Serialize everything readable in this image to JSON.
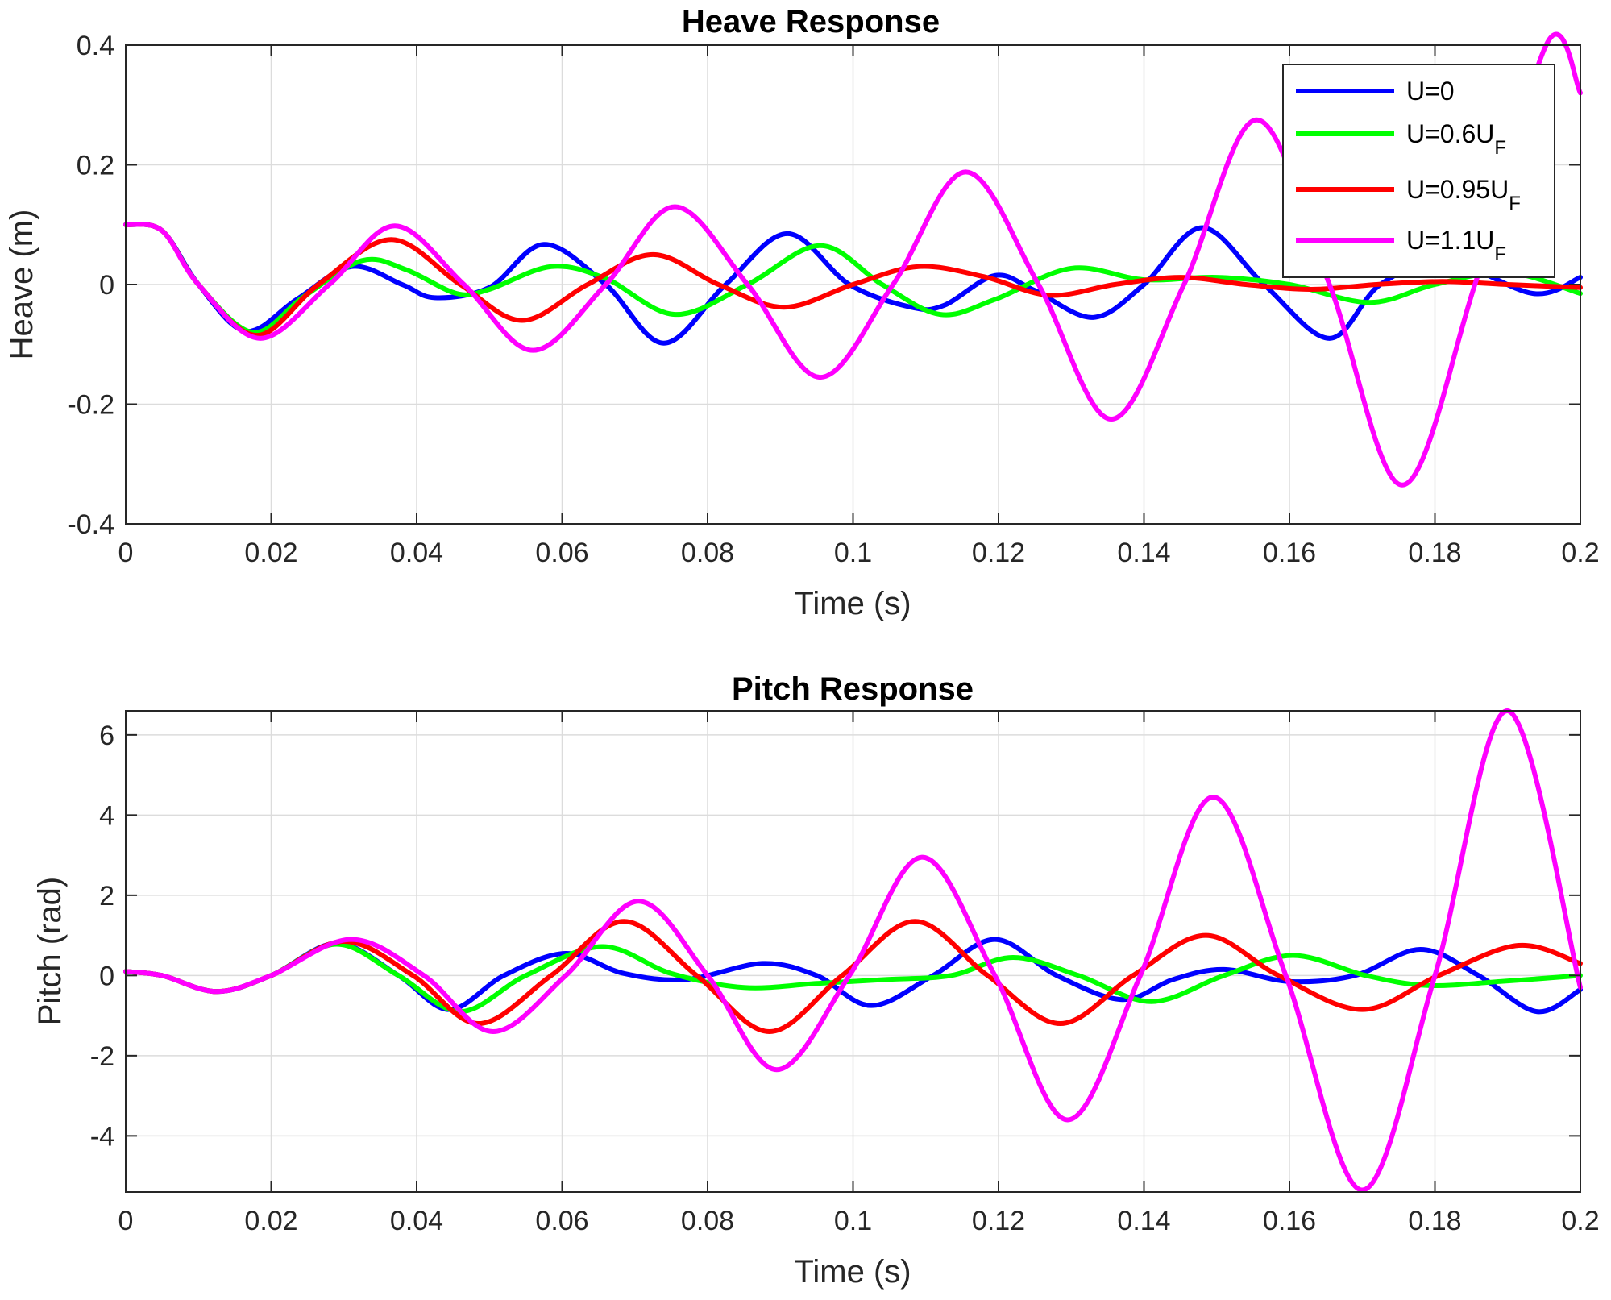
{
  "chart_data": [
    {
      "type": "line",
      "title": "Heave Response",
      "xlabel": "Time (s)",
      "ylabel": "Heave (m)",
      "xlim": [
        0,
        0.2
      ],
      "ylim": [
        -0.4,
        0.4
      ],
      "xticks": [
        0,
        0.02,
        0.04,
        0.06,
        0.08,
        0.1,
        0.12,
        0.14,
        0.16,
        0.18,
        0.2
      ],
      "xtick_labels": [
        "0",
        "0.02",
        "0.04",
        "0.06",
        "0.08",
        "0.1",
        "0.12",
        "0.14",
        "0.16",
        "0.18",
        "0.2"
      ],
      "yticks": [
        -0.4,
        -0.2,
        0,
        0.2,
        0.4
      ],
      "ytick_labels": [
        "-0.4",
        "-0.2",
        "0",
        "0.2",
        "0.4"
      ],
      "grid": true,
      "legend": "top-right",
      "series": [
        {
          "name": "U=0",
          "legend_main": "U=0",
          "legend_sub": "",
          "color": "#0000ff",
          "x": [
            0,
            0.005,
            0.01,
            0.0165,
            0.0235,
            0.031,
            0.038,
            0.0425,
            0.05,
            0.0575,
            0.066,
            0.074,
            0.0825,
            0.091,
            0.0995,
            0.108,
            0.1125,
            0.1195,
            0.125,
            0.133,
            0.14,
            0.148,
            0.1565,
            0.1655,
            0.1725,
            0.1815,
            0.1935,
            0.2
          ],
          "values": [
            0.1,
            0.09,
            0.0,
            -0.078,
            -0.025,
            0.03,
            0.0,
            -0.022,
            -0.005,
            0.067,
            0.0,
            -0.098,
            0.0,
            0.085,
            0.0,
            -0.038,
            -0.035,
            0.015,
            -0.01,
            -0.055,
            0.0,
            0.095,
            0.0,
            -0.09,
            0.0,
            0.04,
            -0.015,
            0.012
          ]
        },
        {
          "name": "U=0.6U_F",
          "legend_main": "U=0.6U",
          "legend_sub": "F",
          "color": "#00ff00",
          "x": [
            0,
            0.005,
            0.01,
            0.0175,
            0.0245,
            0.0325,
            0.0385,
            0.0455,
            0.05,
            0.0585,
            0.066,
            0.0755,
            0.0855,
            0.0955,
            0.104,
            0.112,
            0.1195,
            0.13,
            0.14,
            0.15,
            0.16,
            0.171,
            0.18,
            0.19,
            0.2
          ],
          "values": [
            0.1,
            0.09,
            0.0,
            -0.08,
            -0.02,
            0.04,
            0.025,
            -0.015,
            -0.008,
            0.03,
            0.01,
            -0.05,
            0.0,
            0.065,
            0.0,
            -0.05,
            -0.025,
            0.027,
            0.008,
            0.012,
            0.0,
            -0.03,
            0.0,
            0.02,
            -0.015
          ]
        },
        {
          "name": "U=0.95U_F",
          "legend_main": "U=0.95U",
          "legend_sub": "F",
          "color": "#ff0000",
          "x": [
            0,
            0.005,
            0.01,
            0.018,
            0.0265,
            0.0365,
            0.046,
            0.0545,
            0.0635,
            0.0725,
            0.0815,
            0.0905,
            0.1,
            0.109,
            0.118,
            0.127,
            0.136,
            0.145,
            0.154,
            0.163,
            0.172,
            0.181,
            0.19,
            0.2
          ],
          "values": [
            0.1,
            0.09,
            0.0,
            -0.085,
            0.0,
            0.075,
            0.0,
            -0.06,
            0.0,
            0.05,
            0.0,
            -0.038,
            0.0,
            0.03,
            0.013,
            -0.018,
            0.0,
            0.012,
            0.0,
            -0.008,
            0.0,
            0.005,
            0.0,
            -0.005
          ]
        },
        {
          "name": "U=1.1U_F",
          "legend_main": "U=1.1U",
          "legend_sub": "F",
          "color": "#ff00ff",
          "x": [
            0,
            0.005,
            0.01,
            0.0185,
            0.028,
            0.037,
            0.0465,
            0.056,
            0.066,
            0.0755,
            0.0855,
            0.0955,
            0.1055,
            0.1155,
            0.1255,
            0.1355,
            0.1455,
            0.1555,
            0.1655,
            0.1755,
            0.1855,
            0.1955,
            0.2
          ],
          "values": [
            0.1,
            0.09,
            0.0,
            -0.09,
            0.0,
            0.098,
            0.0,
            -0.11,
            0.0,
            0.13,
            0.0,
            -0.155,
            0.0,
            0.188,
            0.0,
            -0.225,
            0.0,
            0.275,
            0.0,
            -0.335,
            0.0,
            0.405,
            0.32
          ]
        }
      ]
    },
    {
      "type": "line",
      "title": "Pitch Response",
      "xlabel": "Time (s)",
      "ylabel": "Pitch (rad)",
      "xlim": [
        0,
        0.2
      ],
      "ylim": [
        -5.4,
        6.6
      ],
      "xticks": [
        0,
        0.02,
        0.04,
        0.06,
        0.08,
        0.1,
        0.12,
        0.14,
        0.16,
        0.18,
        0.2
      ],
      "xtick_labels": [
        "0",
        "0.02",
        "0.04",
        "0.06",
        "0.08",
        "0.1",
        "0.12",
        "0.14",
        "0.16",
        "0.18",
        "0.2"
      ],
      "yticks": [
        -4,
        -2,
        0,
        2,
        4,
        6
      ],
      "ytick_labels": [
        "-4",
        "-2",
        "0",
        "2",
        "4",
        "6"
      ],
      "grid": true,
      "series": [
        {
          "name": "U=0",
          "color": "#0000ff",
          "x": [
            0,
            0.005,
            0.0125,
            0.02,
            0.029,
            0.0375,
            0.0445,
            0.052,
            0.0605,
            0.0685,
            0.077,
            0.0875,
            0.095,
            0.1025,
            0.111,
            0.1195,
            0.128,
            0.137,
            0.144,
            0.151,
            0.16,
            0.169,
            0.178,
            0.186,
            0.194,
            0.2
          ],
          "values": [
            0.1,
            0.0,
            -0.4,
            0.0,
            0.8,
            0.0,
            -0.85,
            0.0,
            0.55,
            0.05,
            -0.1,
            0.3,
            0.0,
            -0.75,
            0.0,
            0.9,
            0.0,
            -0.6,
            -0.1,
            0.15,
            -0.15,
            0.0,
            0.65,
            0.0,
            -0.9,
            -0.35
          ]
        },
        {
          "name": "U=0.6U_F",
          "color": "#00ff00",
          "x": [
            0,
            0.005,
            0.0125,
            0.02,
            0.029,
            0.0375,
            0.046,
            0.055,
            0.0655,
            0.075,
            0.085,
            0.095,
            0.1045,
            0.1135,
            0.122,
            0.131,
            0.141,
            0.151,
            0.1605,
            0.1705,
            0.179,
            0.189,
            0.2
          ],
          "values": [
            0.1,
            0.0,
            -0.4,
            0.0,
            0.78,
            0.0,
            -0.9,
            0.0,
            0.72,
            0.05,
            -0.3,
            -0.2,
            -0.1,
            0.0,
            0.45,
            0.0,
            -0.65,
            0.0,
            0.5,
            0.0,
            -0.25,
            -0.15,
            0.0
          ]
        },
        {
          "name": "U=0.95U_F",
          "color": "#ff0000",
          "x": [
            0,
            0.005,
            0.0125,
            0.02,
            0.03,
            0.0395,
            0.0485,
            0.0585,
            0.0685,
            0.0785,
            0.0885,
            0.0985,
            0.1085,
            0.1185,
            0.1285,
            0.1385,
            0.1485,
            0.1585,
            0.17,
            0.1805,
            0.1915,
            0.2
          ],
          "values": [
            0.1,
            0.0,
            -0.4,
            0.0,
            0.85,
            0.0,
            -1.2,
            0.0,
            1.35,
            0.0,
            -1.4,
            0.0,
            1.35,
            0.0,
            -1.2,
            0.0,
            1.0,
            0.0,
            -0.85,
            0.0,
            0.75,
            0.3
          ]
        },
        {
          "name": "U=1.1U_F",
          "color": "#ff00ff",
          "x": [
            0,
            0.005,
            0.0125,
            0.02,
            0.031,
            0.041,
            0.0505,
            0.0605,
            0.0705,
            0.08,
            0.0895,
            0.0995,
            0.1095,
            0.1195,
            0.1295,
            0.1395,
            0.1495,
            0.1595,
            0.17,
            0.18,
            0.19,
            0.2
          ],
          "values": [
            0.1,
            0.0,
            -0.4,
            0.0,
            0.9,
            0.0,
            -1.4,
            0.0,
            1.85,
            0.0,
            -2.35,
            0.0,
            2.95,
            0.0,
            -3.6,
            0.0,
            4.45,
            0.0,
            -5.35,
            0.0,
            6.6,
            -0.3
          ]
        }
      ]
    }
  ]
}
